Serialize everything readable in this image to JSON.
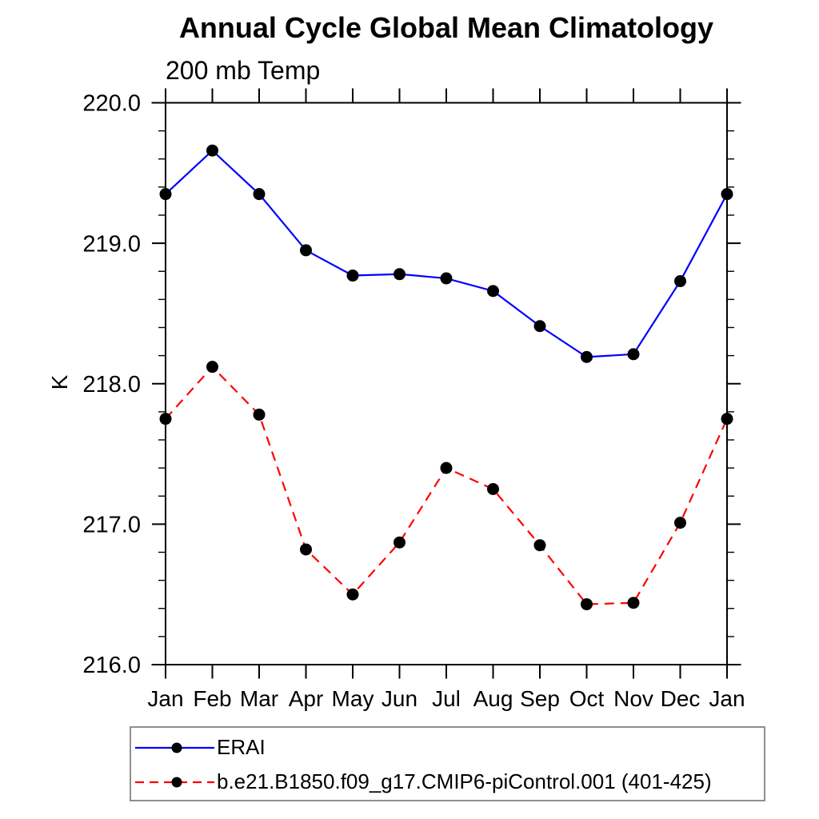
{
  "chart_data": {
    "type": "line",
    "title": "Annual Cycle Global Mean Climatology",
    "subtitle": "200 mb Temp",
    "ylabel": "K",
    "xlabel": "",
    "categories": [
      "Jan",
      "Feb",
      "Mar",
      "Apr",
      "May",
      "Jun",
      "Jul",
      "Aug",
      "Sep",
      "Oct",
      "Nov",
      "Dec",
      "Jan"
    ],
    "y_axis": {
      "min": 216.0,
      "max": 220.0,
      "major_ticks": [
        216.0,
        217.0,
        218.0,
        219.0,
        220.0
      ],
      "major_tick_labels": [
        "216.0",
        "217.0",
        "218.0",
        "219.0",
        "220.0"
      ],
      "minor_tick_step": 0.2
    },
    "grid": false,
    "legend_position": "bottom-left-box",
    "series": [
      {
        "name": "ERAI",
        "color": "#0000ff",
        "line_style": "solid",
        "marker": "filled-circle",
        "marker_color": "#000000",
        "values": [
          219.35,
          219.66,
          219.35,
          218.95,
          218.77,
          218.78,
          218.75,
          218.66,
          218.41,
          218.19,
          218.21,
          218.73,
          219.35
        ]
      },
      {
        "name": "b.e21.B1850.f09_g17.CMIP6-piControl.001 (401-425)",
        "color": "#ff0000",
        "line_style": "dashed",
        "marker": "filled-circle",
        "marker_color": "#000000",
        "values": [
          217.75,
          218.12,
          217.78,
          216.82,
          216.5,
          216.87,
          217.4,
          217.25,
          216.85,
          216.43,
          216.44,
          217.01,
          217.75
        ]
      }
    ],
    "axis_color": "#000000",
    "legend_border_color": "#8f8f8f"
  }
}
